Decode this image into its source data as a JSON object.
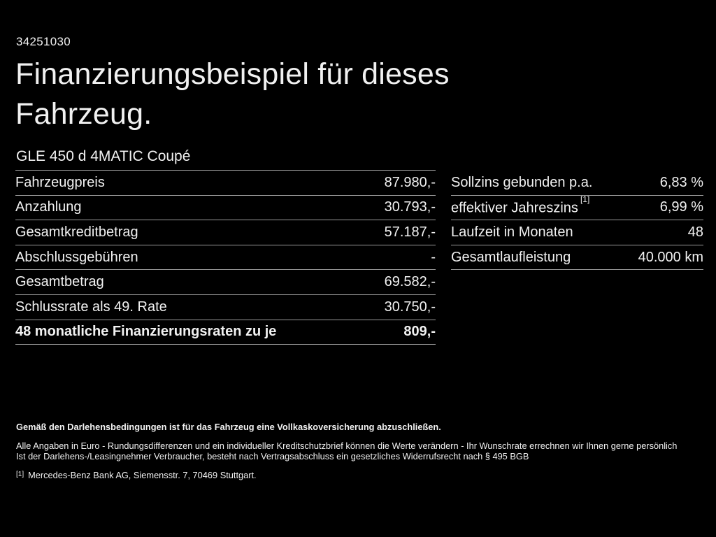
{
  "page": {
    "background": "#000000",
    "text_color": "#f1f1f1",
    "divider_color": "#9b9b9b"
  },
  "doc_id": "34251030",
  "title_lines": [
    "Finanzierungsbeispiel für dieses",
    "Fahrzeug."
  ],
  "vehicle_model": "GLE 450 d 4MATIC Coupé",
  "finance_table": {
    "rows": [
      {
        "label": "Fahrzeugpreis",
        "value": "87.980,-"
      },
      {
        "label": "Anzahlung",
        "value": "30.793,-"
      },
      {
        "label": "Gesamtkreditbetrag",
        "value": "57.187,-"
      },
      {
        "label": "Abschlussgebühren",
        "value": "-"
      },
      {
        "label": "Gesamtbetrag",
        "value": "69.582,-"
      },
      {
        "label": "Schlussrate als 49. Rate",
        "value": "30.750,-"
      },
      {
        "label": "48 monatliche Finanzierungsraten zu je",
        "value": "809,-"
      }
    ]
  },
  "conditions_table": {
    "rows": [
      {
        "label": "Sollzins gebunden p.a.",
        "footnote_marker": "",
        "value": "6,83 %"
      },
      {
        "label": "effektiver Jahreszins",
        "footnote_marker": "[1]",
        "value": "6,99 %"
      },
      {
        "label": "Laufzeit in Monaten",
        "footnote_marker": "",
        "value": "48"
      },
      {
        "label": "Gesamtlaufleistung",
        "footnote_marker": "",
        "value": "40.000 km"
      }
    ]
  },
  "footer": {
    "insurance_note": "Gemäß den Darlehensbedingungen ist für das Fahrzeug eine Vollkaskoversicherung abzuschließen.",
    "disclaimer_line1": "Alle Angaben in Euro - Rundungsdifferenzen und ein individueller Kreditschutzbrief können die Werte verändern - Ihr Wunschrate errechnen wir Ihnen gerne persönlich",
    "disclaimer_line2": "Ist der Darlehens-/Leasingnehmer Verbraucher, besteht nach Vertragsabschluss ein gesetzliches Widerrufsrecht nach § 495 BGB",
    "footnote_marker": "[1]",
    "footnote_text": "Mercedes-Benz Bank AG, Siemensstr. 7, 70469 Stuttgart."
  }
}
